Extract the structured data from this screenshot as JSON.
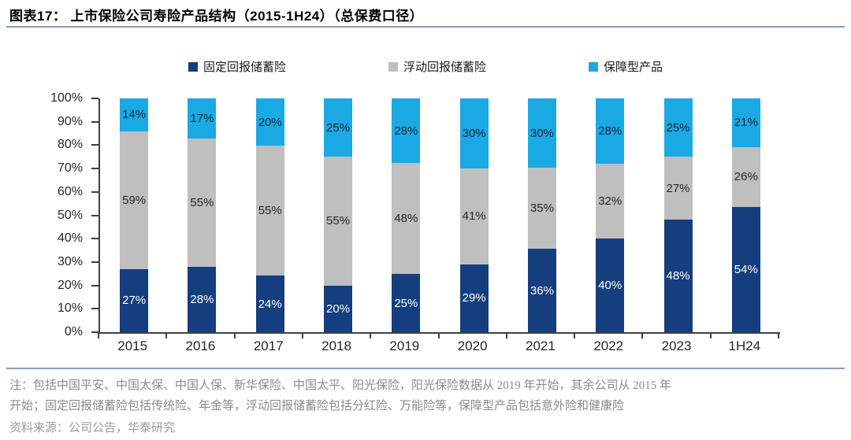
{
  "header": {
    "title": "图表17：  上市保险公司寿险产品结构（2015-1H24）（总保费口径）"
  },
  "chart_data": {
    "type": "bar",
    "stacked": true,
    "title": "上市保险公司寿险产品结构（2015-1H24）（总保费口径）",
    "categories": [
      "2015",
      "2016",
      "2017",
      "2018",
      "2019",
      "2020",
      "2021",
      "2022",
      "2023",
      "1H24"
    ],
    "series": [
      {
        "name": "固定回报储蓄险",
        "color": "#143E7D",
        "label_color": "#FFFFFF",
        "values": [
          27,
          28,
          24,
          20,
          25,
          29,
          36,
          40,
          48,
          54
        ]
      },
      {
        "name": "浮动回报储蓄险",
        "color": "#BFBFBF",
        "label_color": "#262626",
        "values": [
          59,
          55,
          55,
          55,
          48,
          41,
          35,
          32,
          27,
          26
        ]
      },
      {
        "name": "保障型产品",
        "color": "#1BA9E4",
        "label_color": "#1A2433",
        "values": [
          14,
          17,
          20,
          25,
          28,
          30,
          30,
          28,
          25,
          21
        ]
      }
    ],
    "unit": "%",
    "ylim": [
      0,
      100
    ],
    "y_ticks": [
      "100%",
      "90%",
      "80%",
      "70%",
      "60%",
      "50%",
      "40%",
      "30%",
      "20%",
      "10%",
      "0%"
    ],
    "grid": false,
    "legend_position": "top"
  },
  "footer": {
    "note_line1": "注：包括中国平安、中国太保、中国人保、新华保险、中国太平、阳光保险，阳光保险数据从 2019 年开始，其余公司从 2015 年",
    "note_line2": "开始；固定回报储蓄险包括传统险、年金等，浮动回报储蓄险包括分红险、万能险等，保障型产品包括意外险和健康险",
    "source": "资料来源：公司公告，华泰研究"
  },
  "colors": {
    "accent_rule": "#849EC0",
    "axis": "#404040",
    "note_text": "#8A8A8A",
    "source_text": "#9A9A9A"
  }
}
